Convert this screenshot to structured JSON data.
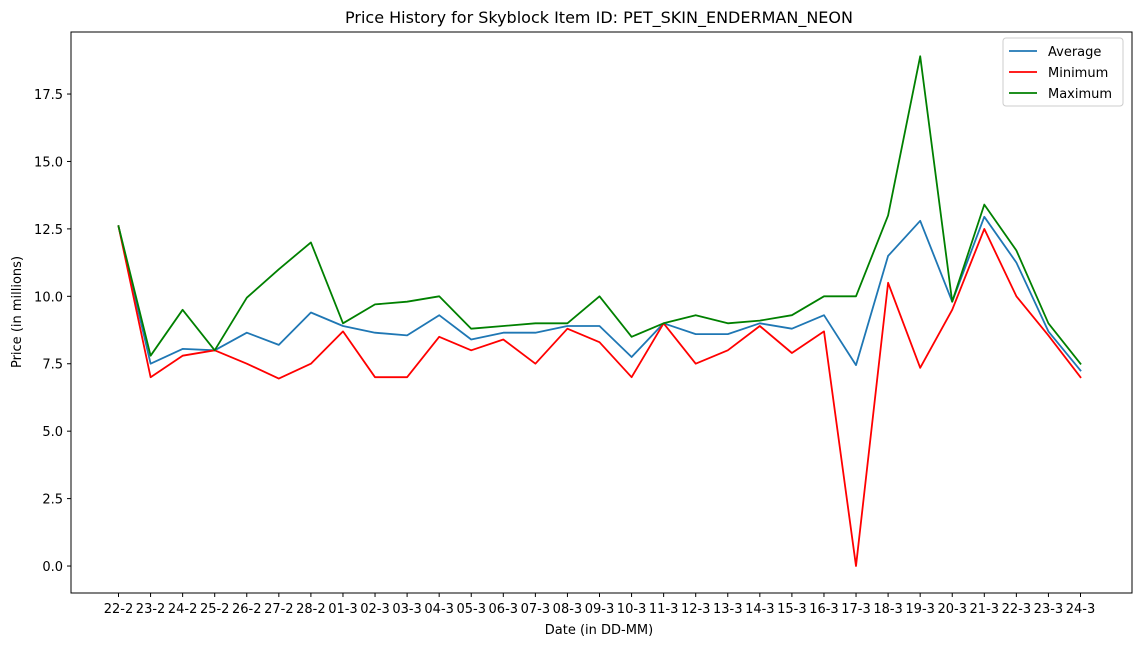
{
  "chart_data": {
    "type": "line",
    "title": "Price History for Skyblock Item ID: PET_SKIN_ENDERMAN_NEON",
    "xlabel": "Date (in DD-MM)",
    "ylabel": "Price (in millions)",
    "categories": [
      "22-2",
      "23-2",
      "24-2",
      "25-2",
      "26-2",
      "27-2",
      "28-2",
      "01-3",
      "02-3",
      "03-3",
      "04-3",
      "05-3",
      "06-3",
      "07-3",
      "08-3",
      "09-3",
      "10-3",
      "11-3",
      "12-3",
      "13-3",
      "14-3",
      "15-3",
      "16-3",
      "17-3",
      "18-3",
      "19-3",
      "20-3",
      "21-3",
      "22-3",
      "23-3",
      "24-3"
    ],
    "ylim": [
      -1.0,
      19.8
    ],
    "yticks": [
      0.0,
      2.5,
      5.0,
      7.5,
      10.0,
      12.5,
      15.0,
      17.5
    ],
    "ytick_labels": [
      "0.0",
      "2.5",
      "5.0",
      "7.5",
      "10.0",
      "12.5",
      "15.0",
      "17.5"
    ],
    "grid": false,
    "legend_position": "top-right",
    "series": [
      {
        "name": "Average",
        "color": "#1f77b4",
        "values": [
          12.6,
          7.5,
          8.05,
          8.0,
          8.65,
          8.2,
          9.4,
          8.9,
          8.65,
          8.55,
          9.3,
          8.4,
          8.65,
          8.65,
          8.9,
          8.9,
          7.75,
          9.0,
          8.6,
          8.6,
          9.0,
          8.8,
          9.3,
          7.45,
          11.5,
          12.8,
          9.8,
          12.95,
          11.25,
          8.7,
          7.25
        ]
      },
      {
        "name": "Minimum",
        "color": "#ff0000",
        "values": [
          12.6,
          7.0,
          7.8,
          8.0,
          7.5,
          6.95,
          7.5,
          8.7,
          7.0,
          7.0,
          8.5,
          8.0,
          8.4,
          7.5,
          8.8,
          8.3,
          7.0,
          9.0,
          7.5,
          8.0,
          8.9,
          7.9,
          8.7,
          0.0,
          10.5,
          7.35,
          9.5,
          12.5,
          10.0,
          8.55,
          7.0
        ]
      },
      {
        "name": "Maximum",
        "color": "#008000",
        "values": [
          12.6,
          7.8,
          9.5,
          8.0,
          9.95,
          11.0,
          12.0,
          9.0,
          9.7,
          9.8,
          10.0,
          8.8,
          8.9,
          9.0,
          9.0,
          10.0,
          8.5,
          9.0,
          9.3,
          9.0,
          9.1,
          9.3,
          10.0,
          10.0,
          13.0,
          18.9,
          9.8,
          13.4,
          11.7,
          9.0,
          7.5
        ]
      }
    ]
  }
}
